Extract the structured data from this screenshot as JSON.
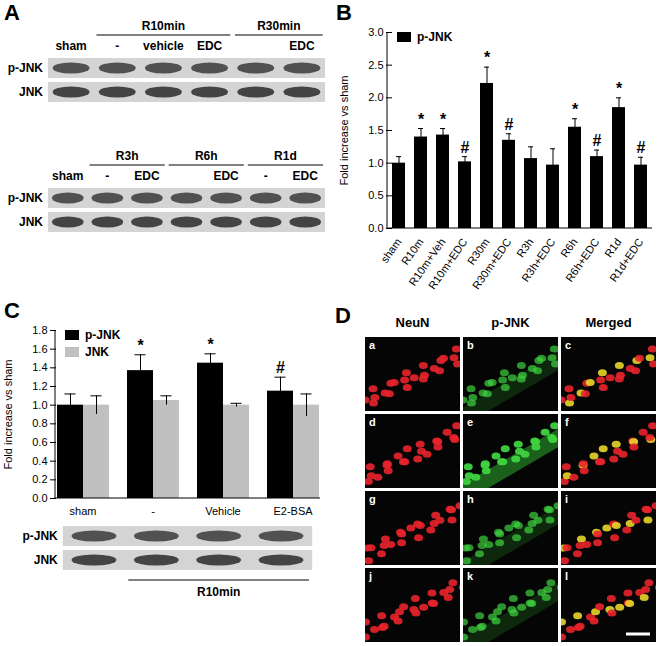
{
  "blots": {
    "label": "A",
    "panels": [
      {
        "rows": [
          "p-JNK",
          "JNK"
        ],
        "lanes": [
          "sham",
          "-",
          "vehicle",
          "EDC",
          null,
          "EDC"
        ],
        "groups": [
          {
            "label": "R10min",
            "from": 1,
            "to": 3
          },
          {
            "label": "R30min",
            "from": 4,
            "to": 5
          }
        ]
      },
      {
        "rows": [
          "p-JNK",
          "JNK"
        ],
        "lanes": [
          "sham",
          "-",
          "EDC",
          null,
          "EDC",
          "-",
          "EDC"
        ],
        "groups": [
          {
            "label": "R3h",
            "from": 1,
            "to": 2
          },
          {
            "label": "R6h",
            "from": 3,
            "to": 4
          },
          {
            "label": "R1d",
            "from": 5,
            "to": 6
          }
        ]
      }
    ]
  },
  "chart_data": [
    {
      "type": "bar",
      "title": "B",
      "ylabel": "Fold increase vs sham",
      "categories": [
        "sham",
        "R10m",
        "R10m+Veh",
        "R10m+EDC",
        "R30m",
        "R30m+EDC",
        "R3h",
        "R3h+EDC",
        "R6h",
        "R6h+EDC",
        "R1d",
        "R1d+EDC"
      ],
      "series": [
        {
          "name": "p-JNK",
          "color": "#000000",
          "values": [
            1.0,
            1.4,
            1.43,
            1.02,
            2.22,
            1.35,
            1.07,
            0.97,
            1.55,
            1.1,
            1.85,
            0.97
          ],
          "errors": [
            0.1,
            0.13,
            0.1,
            0.08,
            0.25,
            0.1,
            0.18,
            0.25,
            0.13,
            0.1,
            0.15,
            0.12
          ],
          "annotations": [
            null,
            "*",
            "*",
            "#",
            "*",
            "#",
            null,
            null,
            "*",
            "#",
            "*",
            "#"
          ]
        }
      ],
      "ylim": [
        0,
        3
      ],
      "yticks": [
        {
          "value": 0,
          "label": "0.0"
        },
        0.5,
        {
          "value": 1,
          "label": "1.0"
        },
        1.5,
        {
          "value": 2,
          "label": "2.0"
        },
        2.5,
        {
          "value": 3,
          "label": "3.0"
        }
      ],
      "legend": "upper left"
    },
    {
      "type": "bar",
      "title": "C",
      "ylabel": "Fold increase vs sham",
      "categories": [
        "sham",
        "-",
        "Vehicle",
        "E2-BSA"
      ],
      "series": [
        {
          "name": "p-JNK",
          "color": "#000000",
          "values": [
            1.0,
            1.37,
            1.45,
            1.15
          ],
          "errors": [
            0.12,
            0.17,
            0.1,
            0.15
          ],
          "annotations": [
            null,
            "*",
            "*",
            "#"
          ]
        },
        {
          "name": "JNK",
          "color": "#c0c0c0",
          "values": [
            1.0,
            1.05,
            1.0,
            1.0
          ],
          "errors": [
            0.1,
            0.05,
            0.02,
            0.12
          ]
        }
      ],
      "ylim": [
        0,
        1.8
      ],
      "yticks": [
        {
          "value": 0,
          "label": "0.0"
        },
        0.2,
        0.4,
        0.6,
        0.8,
        {
          "value": 1,
          "label": "1.0"
        },
        1.2,
        1.4,
        1.6,
        1.8
      ],
      "legend": "upper left",
      "blot": {
        "rows": [
          "p-JNK",
          "JNK"
        ],
        "groups": [
          {
            "label": "R10min",
            "from": 1,
            "to": 3
          }
        ]
      }
    }
  ],
  "micrographs": {
    "label": "D",
    "columns": [
      "NeuN",
      "p-JNK",
      "Merged"
    ],
    "panels": [
      [
        "a",
        "b",
        "c"
      ],
      [
        "d",
        "e",
        "f"
      ],
      [
        "g",
        "h",
        "i"
      ],
      [
        "j",
        "k",
        "l"
      ]
    ]
  }
}
